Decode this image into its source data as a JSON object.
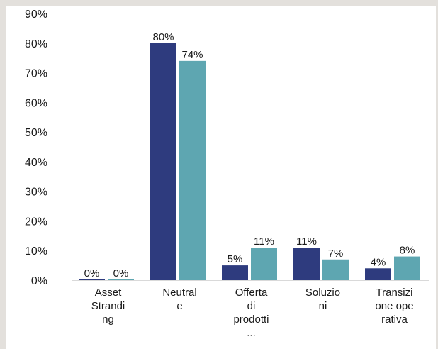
{
  "chart_data": {
    "type": "bar",
    "categories": [
      [
        "Asset",
        "Strandi",
        "ng"
      ],
      [
        "Neutral",
        "e"
      ],
      [
        "Offerta",
        "di",
        "prodotti",
        "..."
      ],
      [
        "Soluzio",
        "ni"
      ],
      [
        "Transizi",
        "one ope",
        "rativa"
      ]
    ],
    "series": [
      {
        "values": [
          0,
          80,
          5,
          11,
          4
        ],
        "labels": [
          "0%",
          "80%",
          "5%",
          "11%",
          "4%"
        ],
        "color": "#2e3b7e"
      },
      {
        "values": [
          0,
          74,
          11,
          7,
          8
        ],
        "labels": [
          "0%",
          "74%",
          "11%",
          "7%",
          "8%"
        ],
        "color": "#5ea6b1"
      }
    ],
    "yticks": [
      "0%",
      "10%",
      "20%",
      "30%",
      "40%",
      "50%",
      "60%",
      "70%",
      "80%",
      "90%"
    ],
    "ylim": [
      0,
      90
    ],
    "legend": "none",
    "grid": false,
    "title": "",
    "xlabel": "",
    "ylabel": ""
  }
}
